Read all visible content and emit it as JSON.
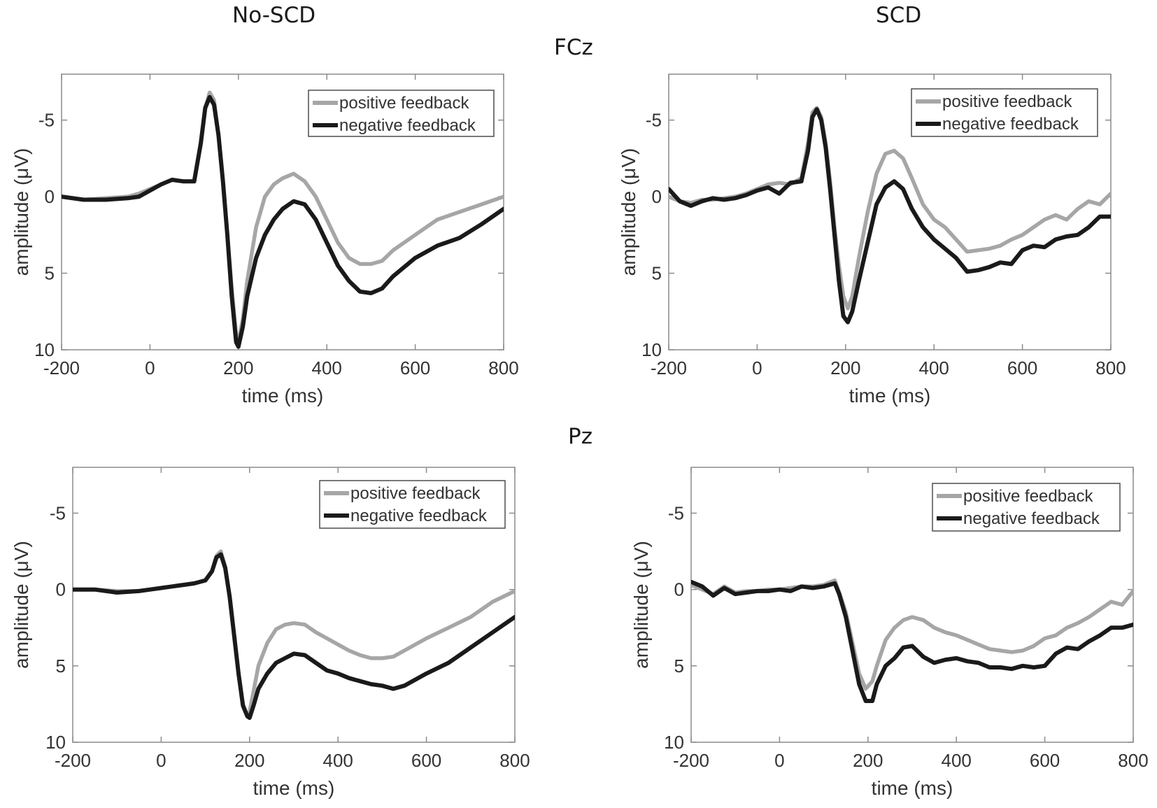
{
  "column_titles": {
    "left": "No-SCD",
    "right": "SCD"
  },
  "row_titles": {
    "top": "FCz",
    "bottom": "Pz"
  },
  "colors": {
    "positive": "#a6a6a6",
    "negative": "#1a1a1a",
    "axis": "#8c8c8c",
    "text": "#333333"
  },
  "chart_data": [
    {
      "type": "line",
      "group": "No-SCD",
      "electrode": "FCz",
      "xlabel": "time (ms)",
      "ylabel": "amplitude (μV)",
      "xlim": [
        -200,
        800
      ],
      "ylim": [
        -8,
        10
      ],
      "y_reversed": true,
      "xticks": [
        "-200",
        "0",
        "200",
        "400",
        "600",
        "800"
      ],
      "yticks": [
        "-5",
        "0",
        "5",
        "10"
      ],
      "legend_position": "top-right",
      "series": [
        {
          "name": "positive feedback",
          "x": [
            -200,
            -150,
            -100,
            -50,
            -25,
            0,
            25,
            50,
            75,
            100,
            115,
            125,
            135,
            145,
            155,
            165,
            175,
            185,
            195,
            200,
            210,
            220,
            240,
            260,
            280,
            300,
            325,
            350,
            375,
            400,
            425,
            450,
            475,
            500,
            525,
            550,
            600,
            650,
            700,
            750,
            800
          ],
          "y": [
            0,
            0.2,
            0.1,
            0,
            -0.2,
            -0.5,
            -0.8,
            -1.1,
            -1.0,
            -1.0,
            -3.5,
            -5.8,
            -6.8,
            -6.3,
            -4,
            -1,
            2.5,
            6,
            9,
            9.5,
            8,
            5.5,
            2,
            0,
            -0.8,
            -1.2,
            -1.5,
            -1,
            0,
            1.5,
            3,
            4,
            4.4,
            4.4,
            4.2,
            3.5,
            2.5,
            1.5,
            1,
            0.5,
            0
          ]
        },
        {
          "name": "negative feedback",
          "x": [
            -200,
            -150,
            -100,
            -50,
            -25,
            0,
            25,
            50,
            75,
            100,
            115,
            125,
            135,
            145,
            155,
            165,
            175,
            185,
            195,
            200,
            210,
            220,
            240,
            260,
            280,
            300,
            325,
            350,
            375,
            400,
            425,
            450,
            475,
            500,
            525,
            550,
            600,
            650,
            700,
            750,
            800
          ],
          "y": [
            0,
            0.2,
            0.2,
            0.1,
            0,
            -0.4,
            -0.8,
            -1.1,
            -1.0,
            -1.0,
            -3.5,
            -5.8,
            -6.5,
            -6.0,
            -4,
            -1,
            2.5,
            6.5,
            9.5,
            9.8,
            8.5,
            6.5,
            4,
            2.5,
            1.5,
            0.8,
            0.3,
            0.5,
            1.5,
            3,
            4.5,
            5.5,
            6.2,
            6.3,
            6,
            5.2,
            4,
            3.2,
            2.7,
            1.8,
            0.8
          ]
        }
      ]
    },
    {
      "type": "line",
      "group": "SCD",
      "electrode": "FCz",
      "xlabel": "time (ms)",
      "ylabel": "amplitude (μV)",
      "xlim": [
        -200,
        800
      ],
      "ylim": [
        -8,
        10
      ],
      "y_reversed": true,
      "xticks": [
        "-200",
        "0",
        "200",
        "400",
        "600",
        "800"
      ],
      "yticks": [
        "-5",
        "0",
        "5",
        "10"
      ],
      "legend_position": "top-right",
      "series": [
        {
          "name": "positive feedback",
          "x": [
            -200,
            -175,
            -150,
            -125,
            -100,
            -75,
            -50,
            -25,
            0,
            25,
            50,
            75,
            100,
            115,
            125,
            135,
            145,
            155,
            165,
            175,
            185,
            195,
            205,
            215,
            230,
            250,
            270,
            290,
            310,
            330,
            350,
            375,
            400,
            425,
            450,
            475,
            500,
            525,
            550,
            575,
            600,
            625,
            650,
            675,
            700,
            725,
            750,
            775,
            800
          ],
          "y": [
            0,
            0.3,
            0.4,
            0.2,
            0.2,
            0.1,
            0,
            -0.2,
            -0.5,
            -0.8,
            -0.9,
            -0.8,
            -1.2,
            -3.5,
            -5.5,
            -5.8,
            -5.2,
            -3.5,
            -1,
            2,
            4.5,
            6.5,
            7.3,
            6.5,
            4,
            1,
            -1.5,
            -2.8,
            -3,
            -2.5,
            -1.2,
            0.5,
            1.5,
            2,
            2.8,
            3.6,
            3.5,
            3.4,
            3.2,
            2.8,
            2.5,
            2.0,
            1.5,
            1.2,
            1.5,
            0.8,
            0.3,
            0.5,
            -0.2
          ]
        },
        {
          "name": "negative feedback",
          "x": [
            -200,
            -175,
            -150,
            -125,
            -100,
            -75,
            -50,
            -25,
            0,
            25,
            50,
            75,
            100,
            115,
            125,
            135,
            145,
            155,
            165,
            175,
            185,
            195,
            205,
            215,
            230,
            250,
            270,
            290,
            310,
            330,
            350,
            375,
            400,
            425,
            450,
            475,
            500,
            525,
            550,
            575,
            600,
            625,
            650,
            675,
            700,
            725,
            750,
            775,
            800
          ],
          "y": [
            -0.5,
            0.3,
            0.6,
            0.3,
            0.1,
            0.2,
            0.1,
            -0.1,
            -0.4,
            -0.6,
            -0.2,
            -0.9,
            -1.0,
            -3.0,
            -5.2,
            -5.7,
            -5.0,
            -3.2,
            -0.5,
            2.5,
            5.5,
            7.8,
            8.2,
            7.5,
            5.5,
            3,
            0.5,
            -0.6,
            -1.0,
            -0.5,
            0.8,
            2,
            2.8,
            3.4,
            4,
            4.9,
            4.8,
            4.6,
            4.3,
            4.4,
            3.5,
            3.2,
            3.3,
            2.8,
            2.6,
            2.5,
            2.0,
            1.3,
            1.3
          ]
        }
      ]
    },
    {
      "type": "line",
      "group": "No-SCD",
      "electrode": "Pz",
      "xlabel": "time (ms)",
      "ylabel": "amplitude (μV)",
      "xlim": [
        -200,
        800
      ],
      "ylim": [
        -8,
        10
      ],
      "y_reversed": true,
      "xticks": [
        "-200",
        "0",
        "200",
        "400",
        "600",
        "800"
      ],
      "yticks": [
        "-5",
        "0",
        "5",
        "10"
      ],
      "legend_position": "top-right",
      "series": [
        {
          "name": "positive feedback",
          "x": [
            -200,
            -150,
            -100,
            -50,
            -25,
            0,
            25,
            50,
            75,
            100,
            115,
            125,
            135,
            145,
            155,
            165,
            175,
            185,
            195,
            200,
            210,
            220,
            240,
            260,
            280,
            300,
            325,
            350,
            375,
            400,
            425,
            450,
            475,
            500,
            525,
            550,
            600,
            650,
            700,
            750,
            800
          ],
          "y": [
            0,
            0,
            0.1,
            0.1,
            0,
            -0.1,
            -0.2,
            -0.3,
            -0.4,
            -0.6,
            -1.2,
            -2.2,
            -2.5,
            -1.5,
            0.5,
            3,
            5.5,
            7.5,
            8.3,
            8.0,
            6.5,
            5,
            3.5,
            2.6,
            2.3,
            2.2,
            2.3,
            2.8,
            3.2,
            3.6,
            4.0,
            4.3,
            4.5,
            4.5,
            4.4,
            4.0,
            3.2,
            2.5,
            1.8,
            0.8,
            0.1
          ]
        },
        {
          "name": "negative feedback",
          "x": [
            -200,
            -150,
            -100,
            -50,
            -25,
            0,
            25,
            50,
            75,
            100,
            115,
            125,
            135,
            145,
            155,
            165,
            175,
            185,
            195,
            200,
            210,
            220,
            240,
            260,
            280,
            300,
            325,
            350,
            375,
            400,
            425,
            450,
            475,
            500,
            525,
            550,
            600,
            650,
            700,
            750,
            800
          ],
          "y": [
            0,
            0,
            0.2,
            0.1,
            0,
            -0.1,
            -0.2,
            -0.3,
            -0.4,
            -0.6,
            -1.2,
            -2.1,
            -2.3,
            -1.4,
            0.5,
            3,
            5.5,
            7.6,
            8.3,
            8.4,
            7.5,
            6.5,
            5.5,
            4.8,
            4.5,
            4.2,
            4.3,
            4.8,
            5.3,
            5.5,
            5.8,
            6.0,
            6.2,
            6.3,
            6.5,
            6.3,
            5.5,
            4.8,
            3.8,
            2.8,
            1.8
          ]
        }
      ]
    },
    {
      "type": "line",
      "group": "SCD",
      "electrode": "Pz",
      "xlabel": "time (ms)",
      "ylabel": "amplitude (μV)",
      "xlim": [
        -200,
        800
      ],
      "ylim": [
        -8,
        10
      ],
      "y_reversed": true,
      "xticks": [
        "-200",
        "0",
        "200",
        "400",
        "600",
        "800"
      ],
      "yticks": [
        "-5",
        "0",
        "5",
        "10"
      ],
      "legend_position": "top-right",
      "series": [
        {
          "name": "positive feedback",
          "x": [
            -200,
            -175,
            -150,
            -125,
            -100,
            -75,
            -50,
            -25,
            0,
            25,
            50,
            75,
            100,
            125,
            135,
            150,
            165,
            180,
            195,
            210,
            220,
            240,
            260,
            280,
            300,
            325,
            350,
            375,
            400,
            425,
            450,
            475,
            500,
            525,
            550,
            575,
            600,
            625,
            650,
            675,
            700,
            725,
            750,
            775,
            800
          ],
          "y": [
            -0.3,
            0,
            0.3,
            -0.2,
            0.2,
            0.1,
            0.1,
            0,
            0,
            -0.1,
            -0.2,
            -0.2,
            -0.3,
            -0.6,
            0.2,
            1.5,
            3.5,
            5.5,
            6.5,
            6.0,
            5.0,
            3.3,
            2.5,
            2.0,
            1.8,
            2.0,
            2.5,
            2.8,
            3.0,
            3.3,
            3.6,
            3.9,
            4.0,
            4.1,
            4.0,
            3.7,
            3.2,
            3.0,
            2.5,
            2.2,
            1.8,
            1.3,
            0.8,
            1.0,
            0.1
          ]
        },
        {
          "name": "negative feedback",
          "x": [
            -200,
            -175,
            -150,
            -125,
            -100,
            -75,
            -50,
            -25,
            0,
            25,
            50,
            75,
            100,
            125,
            135,
            150,
            165,
            180,
            195,
            210,
            220,
            240,
            260,
            280,
            300,
            325,
            350,
            375,
            400,
            425,
            450,
            475,
            500,
            525,
            550,
            575,
            600,
            625,
            650,
            675,
            700,
            725,
            750,
            775,
            800
          ],
          "y": [
            -0.5,
            -0.2,
            0.4,
            -0.1,
            0.3,
            0.2,
            0.1,
            0.1,
            0,
            0.1,
            -0.2,
            -0.1,
            -0.2,
            -0.4,
            0.3,
            1.8,
            4,
            6.2,
            7.3,
            7.3,
            6.2,
            5.0,
            4.5,
            3.8,
            3.7,
            4.4,
            4.8,
            4.6,
            4.5,
            4.7,
            4.8,
            5.1,
            5.1,
            5.2,
            5.0,
            5.1,
            5.0,
            4.2,
            3.8,
            3.9,
            3.4,
            3.0,
            2.5,
            2.5,
            2.3
          ]
        }
      ]
    }
  ]
}
